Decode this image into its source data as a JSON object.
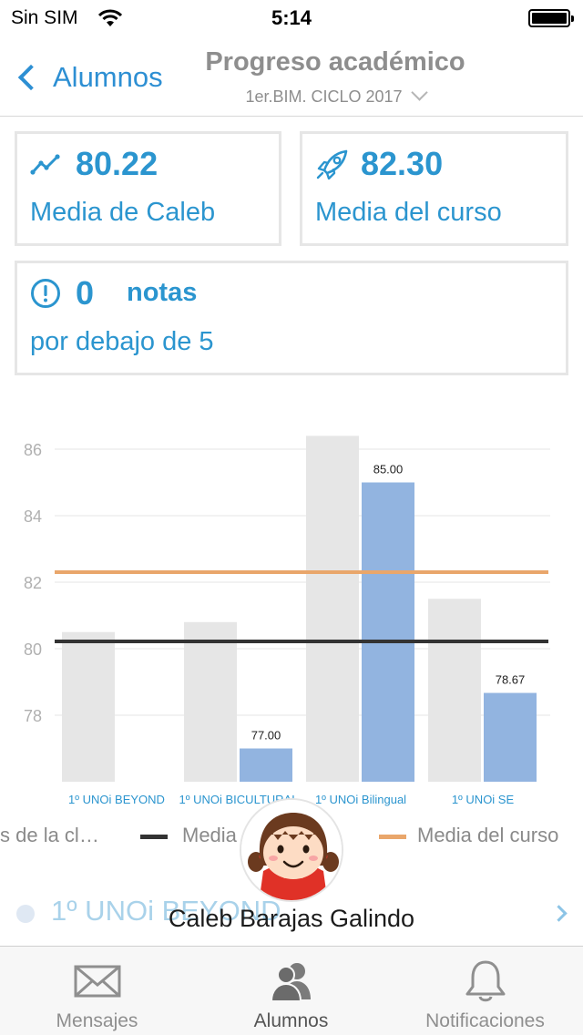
{
  "status_bar": {
    "carrier": "Sin SIM",
    "time": "5:14"
  },
  "nav": {
    "back_label": "Alumnos",
    "title": "Progreso académico",
    "period": "1er.BIM. CICLO 2017"
  },
  "cards": {
    "student_avg": {
      "value": "80.22",
      "label": "Media de Caleb",
      "icon": "trend-line-icon"
    },
    "course_avg": {
      "value": "82.30",
      "label": "Media del curso",
      "icon": "rocket-icon"
    },
    "low_grades": {
      "value": "0",
      "unit": "notas",
      "label": "por debajo de 5",
      "icon": "alert-circle-icon"
    }
  },
  "chart_data": {
    "type": "bar",
    "categories": [
      "1º UNOi BEYOND",
      "1º UNOi BICULTURAL",
      "1º UNOi Bilingual",
      "1º  UNOi SE"
    ],
    "y_ticks": [
      78,
      80,
      82,
      84,
      86
    ],
    "ylim": [
      76,
      87
    ],
    "grid": true,
    "series": [
      {
        "values": [
          80.5,
          80.8,
          86.4,
          81.5
        ],
        "color": "#e6e6e6"
      },
      {
        "values": [
          null,
          77.0,
          85.0,
          78.67
        ],
        "labels": [
          "",
          "77.00",
          "85.00",
          "78.67"
        ],
        "color": "#92b4e0"
      }
    ],
    "reference_lines": [
      {
        "name": "Media",
        "value": 80.22,
        "color": "#333333"
      },
      {
        "name": "Media del curso",
        "value": 82.3,
        "color": "#e9a66b"
      }
    ]
  },
  "legend": {
    "class_label": "s de la cl…",
    "student_label": "Media",
    "course_label": "Media del curso",
    "student_color": "#333333",
    "course_color": "#e9a66b"
  },
  "student_row": {
    "subject": "1º UNOi BEYOND",
    "name": "Caleb Barajas Galindo"
  },
  "tabs": [
    {
      "label": "Mensajes",
      "icon": "envelope-icon"
    },
    {
      "label": "Alumnos",
      "icon": "people-icon"
    },
    {
      "label": "Notificaciones",
      "icon": "bell-icon"
    }
  ]
}
